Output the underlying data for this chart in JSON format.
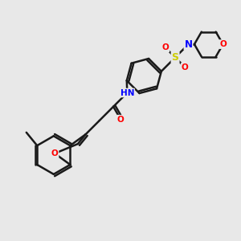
{
  "background_color": "#e8e8e8",
  "bond_color": "#1a1a1a",
  "bond_width": 1.8,
  "atom_colors": {
    "N": "#0000ff",
    "O": "#ff0000",
    "S": "#cccc00",
    "C": "#1a1a1a",
    "H": "#4a9a8a"
  },
  "figsize": [
    3.0,
    3.0
  ],
  "dpi": 100
}
